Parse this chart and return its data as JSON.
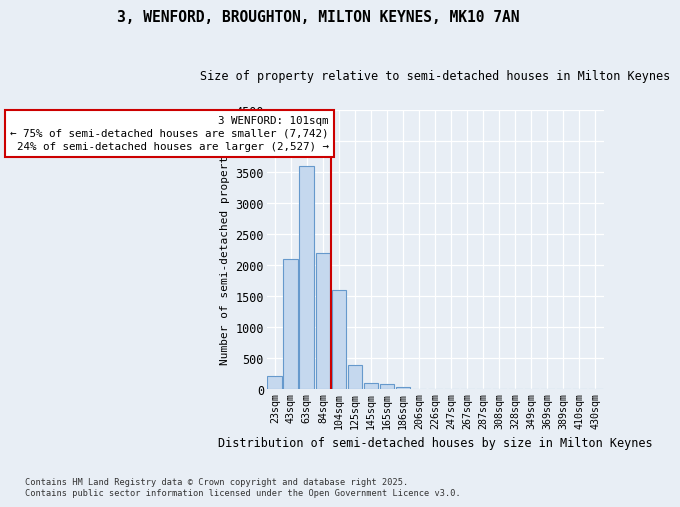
{
  "title": "3, WENFORD, BROUGHTON, MILTON KEYNES, MK10 7AN",
  "subtitle": "Size of property relative to semi-detached houses in Milton Keynes",
  "xlabel": "Distribution of semi-detached houses by size in Milton Keynes",
  "ylabel": "Number of semi-detached properties",
  "bar_labels": [
    "23sqm",
    "43sqm",
    "63sqm",
    "84sqm",
    "104sqm",
    "125sqm",
    "145sqm",
    "165sqm",
    "186sqm",
    "206sqm",
    "226sqm",
    "247sqm",
    "267sqm",
    "287sqm",
    "308sqm",
    "328sqm",
    "349sqm",
    "369sqm",
    "389sqm",
    "410sqm",
    "430sqm"
  ],
  "bar_values": [
    220,
    2100,
    3600,
    2200,
    1600,
    400,
    100,
    90,
    40,
    0,
    0,
    0,
    0,
    0,
    0,
    0,
    0,
    0,
    0,
    0,
    0
  ],
  "property_sqm": 101,
  "annotation_text": "3 WENFORD: 101sqm\n← 75% of semi-detached houses are smaller (7,742)\n24% of semi-detached houses are larger (2,527) →",
  "bar_color": "#c5d8ee",
  "bar_edge_color": "#6699cc",
  "line_color": "#cc0000",
  "background_color": "#e8eef5",
  "ylim": [
    0,
    4500
  ],
  "yticks": [
    0,
    500,
    1000,
    1500,
    2000,
    2500,
    3000,
    3500,
    4000,
    4500
  ],
  "footnote": "Contains HM Land Registry data © Crown copyright and database right 2025.\nContains public sector information licensed under the Open Government Licence v3.0."
}
